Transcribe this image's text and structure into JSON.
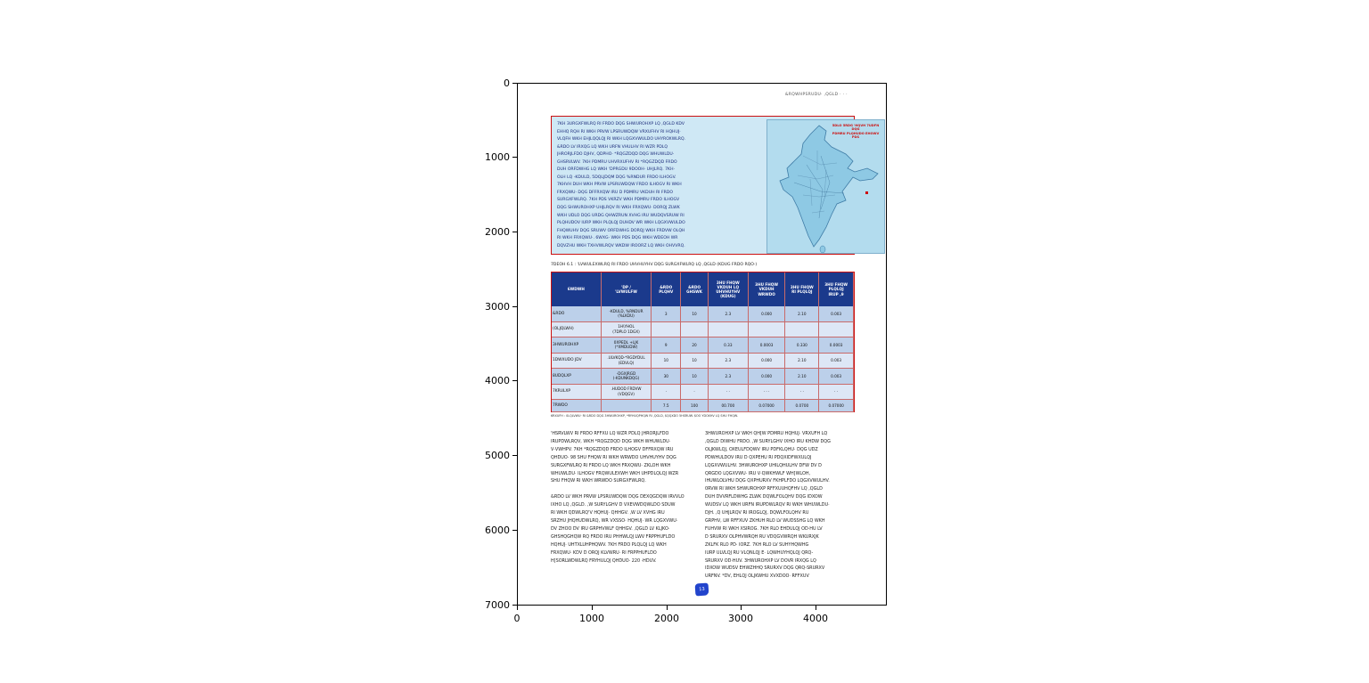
{
  "figure": {
    "y_ticks": [
      "0",
      "1000",
      "2000",
      "3000",
      "4000",
      "5000",
      "6000",
      "7000"
    ],
    "x_ticks": [
      "0",
      "1000",
      "2000",
      "3000",
      "4000"
    ]
  },
  "page": {
    "header_note": "&RQWHPSRUDU· ,QGLD  · · ·",
    "infobox": {
      "lines": [
        "7KH 3URGXFWLRQ RI FRDO DQG SHWUROHXP LQ ,QGLD KDV",
        "EHHQ RQH RI WKH PRVW LPSRUWDQW VRXUFHV RI HQHUJ·",
        "VLQFH WKH EHJLQQLQJ RI WKH LQGXVWULDO UHYROXWLRQ.",
        "&RDO LV IRXQG LQ WKH URFN VHULHV RI WZR PDLQ",
        "JHRORJLFDO DJHV, QDPHO· *RQGZDQD DQG WHUWLDU·",
        "GHSRVLWV. 7KH PDMRU UHVRXUFHV RI *RQGZDQD FRDO",
        "DUH ORFDWHG LQ WKH 'DPRGDU 9DOOH· UHJLRQ. 7KH·",
        "OLH LQ -KDULD, 5DQLJDQM DQG %RNDUR FRDO ILHOGV.",
        "7KHVH DUH WKH PRVW LPSRUWDQW FRDO ILHOGV RI WKH",
        "FRXQWU· DQG DFFRXQW IRU D PDMRU VKDUH RI FRDO",
        "SURGXFWLRQ. 7KH PDS VKRZV WKH PDMRU FRDO ILHOGV",
        "DQG SHWUROHXP UHJLRQV RI WKH FRXQWU· DORQJ ZLWK",
        "WKH UDLO DQG URDG QHWZRUN XVHG IRU WUDQVSRUW RI",
        "PLQHUDOV IURP WKH PLQLQJ DUHDV WR WKH LQGXVWULDO",
        "FHQWUHV DQG SRUWV ORFDWHG DORQJ WKH FRDVW OLQH",
        "RI WKH FRXQWU·. 6WXG· WKH PDS DQG WKH WDEOH WR",
        "DQVZHU WKH TXHVWLRQV WKDW IROORZ LQ WKH OHVVRQ."
      ],
      "map_title": "5DLO 5RDG 'HQVH 7UDFN DQG\nPDMRU PLQHUDO EHOWV PDS"
    },
    "caption": "7DEOH 6.1 : 'LVWULEXWLRQ RI FRDO UHVHUYHV DQG SURGXFWLRQ LQ ,QGLD (KDUG FRDO RQO·)",
    "table": {
      "headers": [
        "6WDWH",
        "'DP /\n'LVWULFW",
        "&RDO\nPLQHV",
        "&RDO\nGHSWK",
        "3HU FHQW\nVKDUH LQ\nUHVHUYHV\n(KDUG)",
        "3HU FHQW\nVKDUH\nWRWDO",
        "3HU FHQW\nRI PLQLQJ",
        "3HU FHQW\nPLQLQJ\nIRUP ,9"
      ],
      "rows": [
        {
          "name": "&RDO",
          "district": "-KDULD, %RNDUR\n(%LKDU)",
          "values": [
            "3",
            "10",
            "2.3",
            "0.000",
            "2.10",
            "0.003"
          ]
        },
        {
          "name": "(OLJQLWH)",
          "district": "1H\\YHOL\n(7DPLO 1DGX)",
          "values": [
            "",
            "",
            "",
            "",
            "",
            ""
          ]
        },
        {
          "name": "3HWUROHXP",
          "district": "0XPEDL +LJK\n(*XMDUDW)",
          "values": [
            "9",
            "20",
            "0.33",
            "0.0003",
            "0.330",
            "0.0003"
          ]
        },
        {
          "name": "1DWXUDO JDV",
          "district": ".ULVKQD-*RGDYDUL\n(EDVLQ)",
          "values": [
            "10",
            "10",
            "2.3",
            "0.000",
            "2.10",
            "0.003"
          ]
        },
        {
          "name": "8UDQLXP",
          "district": "-DGXJRGD\n(-KDUNKDQG)",
          "values": [
            "30",
            "10",
            "2.3",
            "0.000",
            "2.10",
            "0.003"
          ]
        },
        {
          "name": "7KRULXP",
          "district": ".HUDOD FRDVW\n(VDQGV)",
          "values": [
            "·",
            "·",
            "· ·",
            "· · ·",
            "· ·",
            "· ·"
          ]
        },
        {
          "name": "7RWDO",
          "district": "",
          "values": [
            "7.5",
            "100",
            "00.700",
            "0.07000",
            "0.0700",
            "0.07000"
          ]
        }
      ],
      "source": "6RXUFH : 0LQLVWU· RI &RDO DQG 3HWUROHXP, *RYHUQPHQW RI ,QGLD, $QQXDO 5HSRUW. $OO YDOXHV LQ SHU FHQW."
    },
    "body": {
      "left_p1_lines": [
        "'HSRVLWV RI FRDO RFFXU LQ WZR PDLQ JHRORJLFDO",
        "IRUPDWLRQV, WKH *RQGZDQD DQG WKH WHUWLDU·",
        "V·VWHPV. 7KH *RQGZDQD FRDO ILHOGV DFFRXQW IRU",
        "QHDUO· 98 SHU FHQW RI WKH WRWDO UHVHUYHV DQG",
        "SURGXFWLRQ RI FRDO LQ WKH FRXQWU· ZKLOH WKH",
        "WHUWLDU· ILHOGV FRQWULEXWH WKH UHPDLQLQJ WZR",
        "SHU FHQW RI WKH WRWDO SURGXFWLRQ."
      ],
      "left_p2_lines": [
        "&RDO LV WKH PRVW LPSRUWDQW DQG DEXQGDQW IRVVLO",
        "IXHO LQ ,QGLD. ,W SURYLGHV D VXEVWDQWLDO SDUW",
        "RI WKH QDWLRQ'V HQHUJ· QHHGV. ,W LV XVHG IRU",
        "SRZHU JHQHUDWLRQ, WR VXSSO· HQHUJ· WR LQGXVWU·",
        "DV ZHOO DV IRU GRPHVWLF QHHGV. ,QGLD LV KLJKO·",
        "GHSHQGHQW RQ FRDO IRU PHHWLQJ LWV FRPPHUFLDO",
        "HQHUJ· UHTXLUHPHQWV. 7KH FRDO PLQLQJ LQ WKH",
        "FRXQWU· KDV D ORQJ KLVWRU· RI FRPPHUFLDO",
        "H[SORLWDWLRQ FRYHULQJ QHDUO· 220 ·HDUV."
      ],
      "right_lines": [
        "3HWUROHXP LV WKH QH[W PDMRU HQHUJ· VRXUFH LQ",
        ",QGLD DIWHU FRDO. ,W SURYLGHV IXHO IRU KHDW DQG",
        "OLJKWLQJ, OXEULFDQWV IRU PDFKLQHU· DQG UDZ",
        "PDWHULDOV IRU D QXPEHU RI PDQXIDFWXULQJ",
        "LQGXVWULHV. 3HWUROHXP UHILQHULHV DFW DV D",
        "QRGDO LQGXVWU· IRU V·QWKHWLF WH[WLOH,",
        "IHUWLOLVHU DQG QXPHURXV FKHPLFDO LQGXVWULHV.",
        "0RVW RI WKH SHWUROHXP RFFXUUHQFHV LQ ,QGLD",
        "DUH DVVRFLDWHG ZLWK DQWLFOLQHV DQG IDXOW",
        "WUDSV LQ WKH URFN IRUPDWLRQV RI WKH WHUWLDU·",
        "DJH. ,Q UHJLRQV RI IROGLQJ, DQWLFOLQHV RU",
        "GRPHV, LW RFFXUV ZKHUH RLO LV WUDSSHG LQ WKH",
        "FUHVW RI WKH XSIROG. 7KH RLO EHDULQJ OD·HU LV",
        "D SRURXV OLPHVWRQH RU VDQGVWRQH WKURXJK",
        "ZKLFK RLO PD· IORZ. 7KH RLO LV SUHYHQWHG",
        "IURP ULVLQJ RU VLQNLQJ E· LQWHUYHQLQJ QRQ-",
        "SRURXV OD·HUV. 3HWUROHXP LV DOVR IRXQG LQ",
        "IDXOW WUDSV EHWZHHQ SRURXV DQG QRQ-SRURXV",
        "URFNV. *DV, EHLQJ OLJKWHU XVXDOO· RFFXUV"
      ]
    },
    "emblem_text": "13",
    "colors": {
      "box_border": "#cc1111",
      "box_bg": "#cfe8f5",
      "map_bg": "#b3dcee",
      "table_header_bg": "#1b3a8c",
      "row_a": "#bcd0ea",
      "row_b": "#dde7f6"
    }
  }
}
